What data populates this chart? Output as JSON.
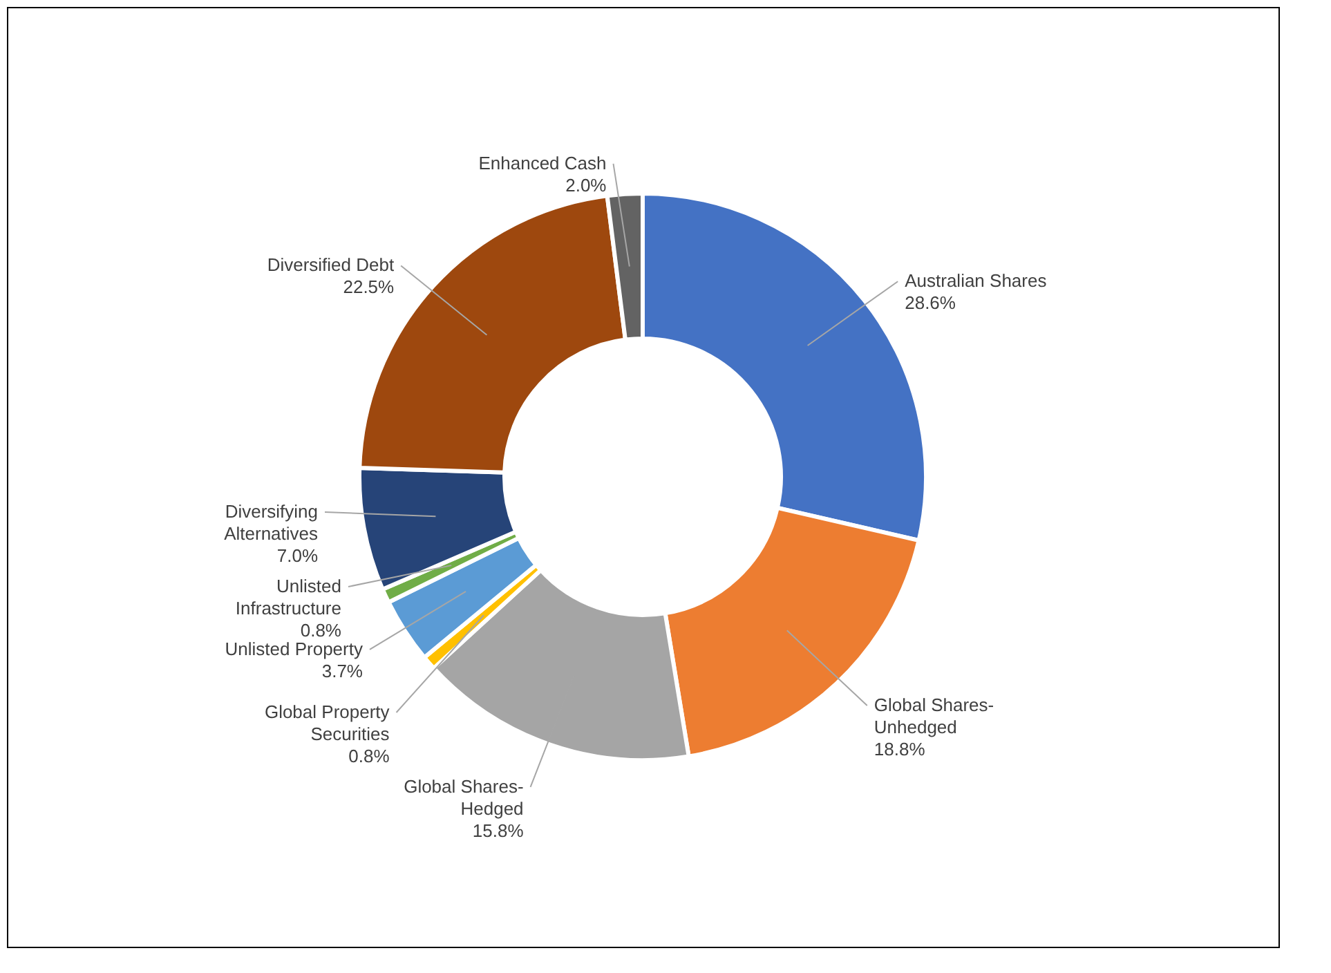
{
  "chart_data": {
    "type": "donut",
    "categories": [
      "Australian Shares",
      "Global Shares-Unhedged",
      "Global Shares-Hedged",
      "Global Property Securities",
      "Unlisted Property",
      "Unlisted Infrastructure",
      "Diversifying Alternatives",
      "Diversified Debt",
      "Enhanced Cash"
    ],
    "values": [
      28.6,
      18.8,
      15.8,
      0.8,
      3.7,
      0.8,
      7.0,
      22.5,
      2.0
    ],
    "value_labels": [
      "28.6%",
      "18.8%",
      "15.8%",
      "0.8%",
      "3.7%",
      "0.8%",
      "7.0%",
      "22.5%",
      "2.0%"
    ],
    "colors": [
      "#4472c4",
      "#ed7d31",
      "#a5a5a5",
      "#ffc000",
      "#5b9bd5",
      "#70ad47",
      "#264478",
      "#9e480e",
      "#636363"
    ],
    "legend": false
  }
}
